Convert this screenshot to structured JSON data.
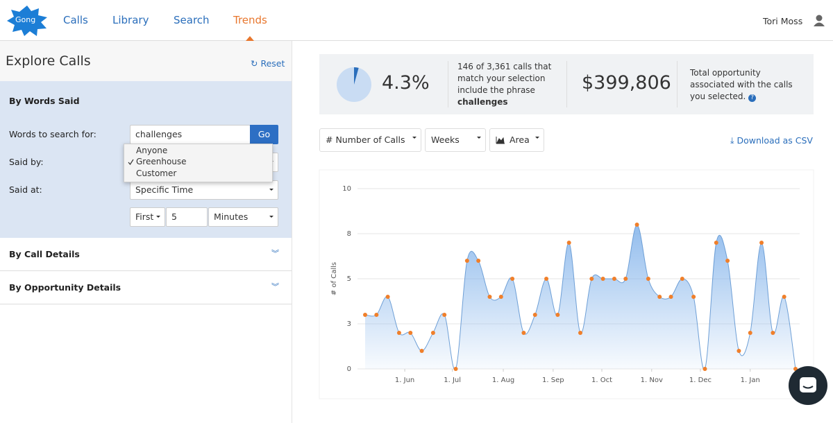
{
  "nav": {
    "logo": "Gong",
    "items": [
      "Calls",
      "Library",
      "Search",
      "Trends"
    ],
    "user": "Tori Moss"
  },
  "sidebar": {
    "title": "Explore Calls",
    "reset": "Reset",
    "words_said": {
      "heading": "By Words Said",
      "search_label": "Words to search for:",
      "search_value": "challenges",
      "go": "Go",
      "said_by_label": "Said by:",
      "said_by_options": [
        "Anyone",
        "Greenhouse",
        "Customer"
      ],
      "said_at_label": "Said at:",
      "said_at_value": "Specific Time",
      "first": "First",
      "amount": "5",
      "unit": "Minutes"
    },
    "collapsed": [
      "By Call Details",
      "By Opportunity Details"
    ]
  },
  "stats": {
    "share": 4.3,
    "share_label": "4.3%",
    "description": "146 of 3,361 calls that match your selection include the phrase",
    "phrase": "challenges",
    "amount": "$399,806",
    "amount_description": "Total opportunity associated with the calls you selected."
  },
  "controls": {
    "metric": "# Number of Calls",
    "period": "Weeks",
    "chart_style": "Area",
    "download": "Download as CSV"
  },
  "chart_data": {
    "type": "area",
    "y_label": "# of Calls",
    "color": "#f07f2a",
    "fill": "#7fb1ea",
    "categories": [
      null,
      null,
      null,
      null,
      null,
      null,
      null,
      null,
      null,
      null,
      null,
      null,
      null,
      null,
      null,
      null,
      null,
      null,
      null,
      null,
      null,
      null,
      null,
      null,
      null,
      null,
      null,
      null,
      null,
      null,
      null,
      null,
      null,
      null,
      null,
      null,
      null,
      null,
      null
    ],
    "values": [
      3,
      3,
      4,
      2,
      2,
      1,
      2,
      3,
      0,
      6,
      6,
      4,
      4,
      5,
      2,
      3,
      5,
      3,
      7,
      2,
      5,
      5,
      5,
      5,
      8,
      5,
      4,
      4,
      5,
      4,
      0,
      7,
      6,
      1,
      2,
      7,
      2,
      4,
      0
    ],
    "xlim": [
      0,
      38
    ],
    "xticks": [
      {
        "value": 3.5,
        "label": "1. Jun"
      },
      {
        "value": 7.7,
        "label": "1. Jul"
      },
      {
        "value": 12.2,
        "label": "1. Aug"
      },
      {
        "value": 16.6,
        "label": "1. Sep"
      },
      {
        "value": 20.9,
        "label": "1. Oct"
      },
      {
        "value": 25.3,
        "label": "1. Nov"
      },
      {
        "value": 29.6,
        "label": "1. Dec"
      },
      {
        "value": 34,
        "label": "1. Jan"
      }
    ],
    "ylim": [
      0,
      10
    ],
    "yticks": [
      0,
      {
        "value": 2.5,
        "label": "3"
      },
      5,
      {
        "value": 7.5,
        "label": "8"
      },
      10
    ],
    "grid": true
  }
}
